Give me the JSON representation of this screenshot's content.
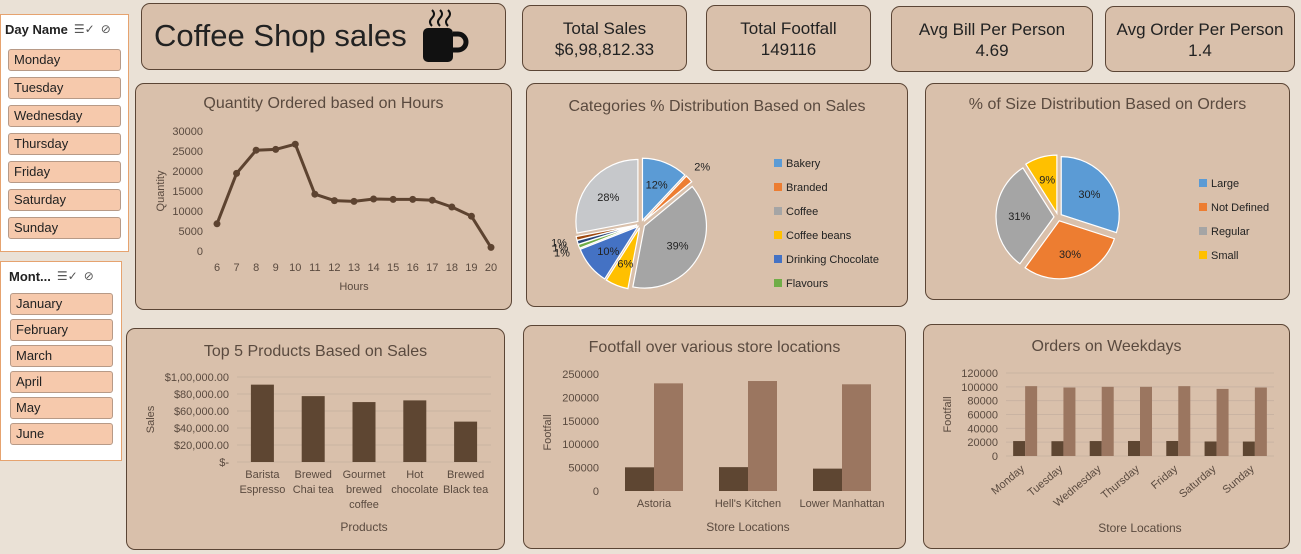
{
  "slicers": {
    "day": {
      "title": "Day Name",
      "items": [
        "Monday",
        "Tuesday",
        "Wednesday",
        "Thursday",
        "Friday",
        "Saturday",
        "Sunday"
      ]
    },
    "month": {
      "title": "Mont...",
      "items": [
        "January",
        "February",
        "March",
        "April",
        "May",
        "June"
      ]
    }
  },
  "header": {
    "title": "Coffee Shop sales",
    "icon": "coffee-cup-icon"
  },
  "kpis": [
    {
      "label": "Total Sales",
      "value": "$6,98,812.33"
    },
    {
      "label": "Total Footfall",
      "value": "149116"
    },
    {
      "label": "Avg Bill Per Person",
      "value": "4.69"
    },
    {
      "label": "Avg Order Per Person",
      "value": "1.4"
    }
  ],
  "colors": {
    "line": "#5d4330",
    "darkbar": "#5e4632",
    "lightbar": "#9b7660",
    "card": "#d9c0ab"
  },
  "chart_data": [
    {
      "type": "line",
      "title": "Quantity Ordered based on Hours",
      "xlabel": "Hours",
      "ylabel": "Quantity",
      "x": [
        6,
        7,
        8,
        9,
        10,
        11,
        12,
        13,
        14,
        15,
        16,
        17,
        18,
        19,
        20
      ],
      "values": [
        6800,
        19400,
        25200,
        25400,
        26700,
        14200,
        12600,
        12400,
        13000,
        12900,
        12900,
        12700,
        11000,
        8700,
        900
      ],
      "yticks": [
        "0",
        "5000",
        "10000",
        "15000",
        "20000",
        "25000",
        "30000"
      ],
      "ylim": [
        0,
        30000
      ]
    },
    {
      "type": "pie",
      "title": "Categories % Distribution Based on Sales",
      "legend": [
        "Bakery",
        "Branded",
        "Coffee",
        "Coffee beans",
        "Drinking Chocolate",
        "Flavours"
      ],
      "slices": [
        {
          "name": "Bakery",
          "value": 12,
          "label": "12%",
          "color": "#5b9bd5"
        },
        {
          "name": "Branded",
          "value": 2,
          "label": "2%",
          "color": "#ed7d31"
        },
        {
          "name": "Coffee",
          "value": 39,
          "label": "39%",
          "color": "#a5a5a5"
        },
        {
          "name": "Coffee beans",
          "value": 6,
          "label": "6%",
          "color": "#ffc000"
        },
        {
          "name": "Drinking Chocolate",
          "value": 10,
          "label": "10%",
          "color": "#4472c4"
        },
        {
          "name": "Flavours",
          "value": 1,
          "label": "1%",
          "color": "#70ad47"
        },
        {
          "name": "",
          "value": 1,
          "label": "1%",
          "color": "#264478"
        },
        {
          "name": "",
          "value": 1,
          "label": "1%",
          "color": "#9e480e"
        },
        {
          "name": "",
          "value": 28,
          "label": "28%",
          "color": "#c6c8cb"
        }
      ]
    },
    {
      "type": "pie",
      "title": "% of Size Distribution Based on Orders",
      "legend": [
        "Large",
        "Not Defined",
        "Regular",
        "Small"
      ],
      "slices": [
        {
          "name": "Large",
          "value": 30,
          "label": "30%",
          "color": "#5b9bd5"
        },
        {
          "name": "Not Defined",
          "value": 30,
          "label": "30%",
          "color": "#ed7d31"
        },
        {
          "name": "Regular",
          "value": 31,
          "label": "31%",
          "color": "#a5a5a5"
        },
        {
          "name": "Small",
          "value": 9,
          "label": "9%",
          "color": "#ffc000"
        }
      ]
    },
    {
      "type": "bar",
      "title": "Top 5 Products Based on Sales",
      "xlabel": "Products",
      "ylabel": "Sales",
      "categories": [
        "Barista Espresso",
        "Brewed Chai tea",
        "Gourmet brewed coffee",
        "Hot chocolate",
        "Brewed Black tea"
      ],
      "category_lines": [
        [
          "Barista",
          "Espresso"
        ],
        [
          "Brewed",
          "Chai tea"
        ],
        [
          "Gourmet",
          "brewed",
          "coffee"
        ],
        [
          "Hot",
          "chocolate"
        ],
        [
          "Brewed",
          "Black tea"
        ]
      ],
      "values": [
        91000,
        77500,
        70500,
        72500,
        47500
      ],
      "yticks": [
        "$-",
        "$20,000.00",
        "$40,000.00",
        "$60,000.00",
        "$80,000.00",
        "$1,00,000.00"
      ],
      "ylim": [
        0,
        100000
      ]
    },
    {
      "type": "bar",
      "title": "Footfall over various store locations",
      "xlabel": "Store Locations",
      "ylabel": "Footfall",
      "categories": [
        "Astoria",
        "Hell's Kitchen",
        "Lower Manhattan"
      ],
      "series": [
        {
          "values": [
            50600,
            51000,
            47800
          ]
        },
        {
          "values": [
            230000,
            235000,
            228000
          ]
        }
      ],
      "yticks": [
        "0",
        "50000",
        "100000",
        "150000",
        "200000",
        "250000"
      ],
      "ylim": [
        0,
        250000
      ]
    },
    {
      "type": "bar",
      "title": "Orders on Weekdays",
      "xlabel": "Store Locations",
      "ylabel": "Footfall",
      "categories": [
        "Monday",
        "Tuesday",
        "Wednesday",
        "Thursday",
        "Friday",
        "Saturday",
        "Sunday"
      ],
      "series": [
        {
          "values": [
            21600,
            21400,
            21600,
            21700,
            21700,
            21000,
            20900
          ]
        },
        {
          "values": [
            101000,
            99000,
            100000,
            100000,
            101000,
            97000,
            99000
          ]
        }
      ],
      "yticks": [
        "0",
        "20000",
        "40000",
        "60000",
        "80000",
        "100000",
        "120000"
      ],
      "ylim": [
        0,
        120000
      ]
    }
  ]
}
